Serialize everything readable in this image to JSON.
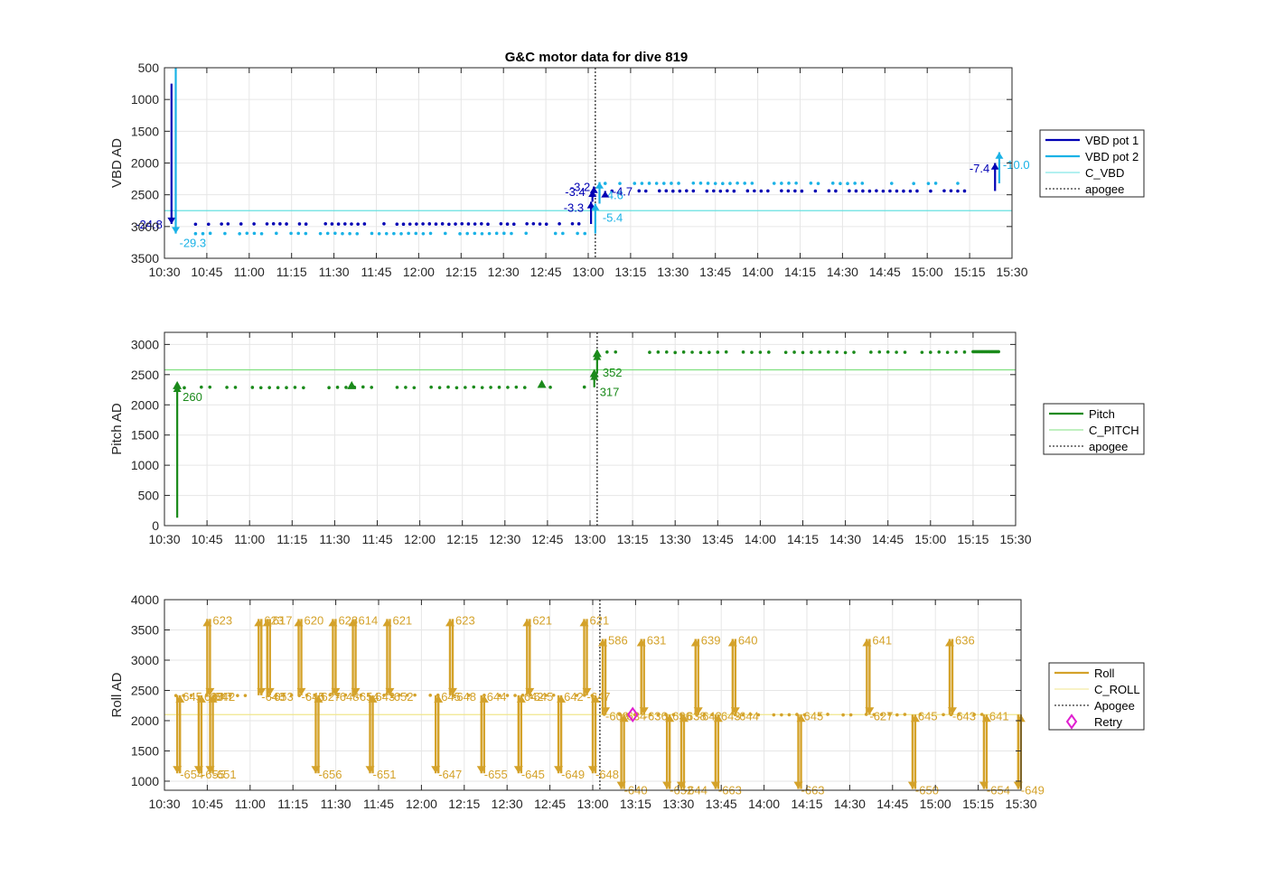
{
  "figure_title": "G&C motor data for dive 819",
  "colors": {
    "vbd1": "#0000b4",
    "vbd2": "#1ab2e6",
    "cvbd": "#66e0e0",
    "pitch": "#1a8a1a",
    "cpitch": "#80e080",
    "roll": "#d4a22a",
    "croll": "#f0e68c",
    "apogee": "#555555",
    "retry": "#e020d0",
    "grid": "#e6e6e6",
    "axis": "#262626"
  },
  "chart_data": [
    {
      "id": "vbd",
      "type": "line",
      "title": "G&C motor data for dive 819",
      "xlabel": "",
      "ylabel": "VBD AD",
      "xlim": [
        630,
        930
      ],
      "ylim": [
        500,
        3500
      ],
      "y_reversed": true,
      "xticks": [
        630,
        645,
        660,
        675,
        690,
        705,
        720,
        735,
        750,
        765,
        780,
        795,
        810,
        825,
        840,
        855,
        870,
        885,
        900,
        915,
        930
      ],
      "xtick_labels": [
        "10:30",
        "10:45",
        "11:00",
        "11:15",
        "11:30",
        "11:45",
        "12:00",
        "12:15",
        "12:30",
        "12:45",
        "13:00",
        "13:15",
        "13:30",
        "13:45",
        "14:00",
        "14:15",
        "14:30",
        "14:45",
        "15:00",
        "15:15",
        "15:30"
      ],
      "yticks": [
        500,
        1000,
        1500,
        2000,
        2500,
        3000,
        3500
      ],
      "ytick_labels": [
        "500",
        "1000",
        "1500",
        "2000",
        "2500",
        "3000",
        "3500"
      ],
      "legend": {
        "placement": "right",
        "entries": [
          "VBD pot 1",
          "VBD pot 2",
          "C_VBD",
          "apogee"
        ]
      },
      "apogee_x": 782.5,
      "c_line": 2750,
      "series": [
        {
          "name": "VBD pot 1",
          "color_key": "vbd1",
          "dots": {
            "x0": 641,
            "x1": 781,
            "step": 2.3,
            "y": 2960,
            "jitter": 8
          }
        },
        {
          "name": "VBD pot 1",
          "color_key": "vbd1",
          "dots": {
            "x0": 786,
            "x1": 914,
            "step": 2.4,
            "y": 2440,
            "jitter": 6
          }
        },
        {
          "name": "VBD pot 2",
          "color_key": "vbd2",
          "dots": {
            "x0": 641,
            "x1": 781,
            "step": 2.6,
            "y": 3110,
            "jitter": 8
          }
        },
        {
          "name": "VBD pot 2",
          "color_key": "vbd2",
          "dots": {
            "x0": 786,
            "x1": 914,
            "step": 2.6,
            "y": 2320,
            "jitter": 6
          }
        }
      ],
      "moves": [
        {
          "x": 632.5,
          "y0": 750,
          "y1": 2960,
          "color_key": "vbd1",
          "label": "-24.8",
          "lx": -10,
          "ly": 2960,
          "anchor": "end"
        },
        {
          "x": 634.0,
          "y0": 500,
          "y1": 3110,
          "color_key": "vbd2",
          "label": "-29.3",
          "lx": 4,
          "ly": 3250,
          "anchor": "start"
        },
        {
          "x": 781.0,
          "y0": 2960,
          "y1": 2610,
          "color_key": "vbd1",
          "label": "-3.3",
          "lx": -8,
          "ly": 2700,
          "anchor": "end"
        },
        {
          "x": 781.5,
          "y0": 2610,
          "y1": 2430,
          "color_key": "vbd1",
          "label": "-3.4",
          "lx": -8,
          "ly": 2450,
          "anchor": "end"
        },
        {
          "x": 782.0,
          "y0": 2430,
          "y1": 2370,
          "color_key": "vbd1",
          "label": "-3.2",
          "lx": -4,
          "ly": 2370,
          "anchor": "end"
        },
        {
          "x": 782.5,
          "y0": 3110,
          "y1": 2640,
          "color_key": "vbd2",
          "label": "-5.4",
          "lx": 8,
          "ly": 2850,
          "anchor": "start"
        },
        {
          "x": 784.0,
          "y0": 2640,
          "y1": 2300,
          "color_key": "vbd2",
          "label": "-4.6",
          "lx": 4,
          "ly": 2500,
          "anchor": "start"
        },
        {
          "x": 786.0,
          "y0": 2470,
          "y1": 2440,
          "color_key": "vbd1",
          "label": "-4.7",
          "lx": 8,
          "ly": 2440,
          "anchor": "start"
        },
        {
          "x": 924.0,
          "y0": 2440,
          "y1": 2000,
          "color_key": "vbd1",
          "label": "-7.4",
          "lx": -6,
          "ly": 2080,
          "anchor": "end"
        },
        {
          "x": 925.5,
          "y0": 2320,
          "y1": 1830,
          "color_key": "vbd2",
          "label": "-10.0",
          "lx": 4,
          "ly": 2020,
          "anchor": "start"
        }
      ]
    },
    {
      "id": "pitch",
      "type": "line",
      "title": "",
      "xlabel": "",
      "ylabel": "Pitch AD",
      "xlim": [
        630,
        930
      ],
      "ylim": [
        0,
        3200
      ],
      "y_reversed": false,
      "xticks": [
        630,
        645,
        660,
        675,
        690,
        705,
        720,
        735,
        750,
        765,
        780,
        795,
        810,
        825,
        840,
        855,
        870,
        885,
        900,
        915,
        930
      ],
      "xtick_labels": [
        "10:30",
        "10:45",
        "11:00",
        "11:15",
        "11:30",
        "11:45",
        "12:00",
        "12:15",
        "12:30",
        "12:45",
        "13:00",
        "13:15",
        "13:30",
        "13:45",
        "14:00",
        "14:15",
        "14:30",
        "14:45",
        "15:00",
        "15:15",
        "15:30"
      ],
      "yticks": [
        0,
        500,
        1000,
        1500,
        2000,
        2500,
        3000
      ],
      "ytick_labels": [
        "0",
        "500",
        "1000",
        "1500",
        "2000",
        "2500",
        "3000"
      ],
      "legend": {
        "placement": "right",
        "entries": [
          "Pitch",
          "C_PITCH",
          "apogee"
        ]
      },
      "apogee_x": 782.5,
      "c_line": 2580,
      "series": [
        {
          "name": "Pitch",
          "color_key": "pitch",
          "dots": {
            "x0": 637,
            "x1": 780,
            "step": 3.0,
            "y": 2290,
            "jitter": 14
          }
        },
        {
          "name": "Pitch",
          "color_key": "pitch",
          "dots": {
            "x0": 786,
            "x1": 915,
            "step": 3.0,
            "y": 2870,
            "jitter": 10
          }
        },
        {
          "name": "Pitch",
          "color_key": "pitch",
          "dots": {
            "x0": 915,
            "x1": 924,
            "step": 0.5,
            "y": 2880,
            "jitter": 0
          }
        }
      ],
      "markers": [
        {
          "x": 634.5,
          "y": 2320
        },
        {
          "x": 696,
          "y": 2320
        },
        {
          "x": 763,
          "y": 2340
        },
        {
          "x": 781.5,
          "y": 2520
        },
        {
          "x": 782.5,
          "y": 2850
        }
      ],
      "moves": [
        {
          "x": 634.5,
          "y0": 130,
          "y1": 2320,
          "color_key": "pitch",
          "label": "260",
          "lx": 6,
          "ly": 2140,
          "anchor": "start"
        },
        {
          "x": 781.5,
          "y0": 2290,
          "y1": 2520,
          "color_key": "pitch",
          "label": "317",
          "lx": 6,
          "ly": 2220,
          "anchor": "start"
        },
        {
          "x": 782.5,
          "y0": 2520,
          "y1": 2850,
          "color_key": "pitch",
          "label": "352",
          "lx": 6,
          "ly": 2540,
          "anchor": "start"
        }
      ]
    },
    {
      "id": "roll",
      "type": "line",
      "title": "",
      "xlabel": "",
      "ylabel": "Roll AD",
      "xlim": [
        630,
        930
      ],
      "ylim": [
        850,
        4000
      ],
      "y_reversed": false,
      "xticks": [
        630,
        645,
        660,
        675,
        690,
        705,
        720,
        735,
        750,
        765,
        780,
        795,
        810,
        825,
        840,
        855,
        870,
        885,
        900,
        915,
        930
      ],
      "xtick_labels": [
        "10:30",
        "10:45",
        "11:00",
        "11:15",
        "11:30",
        "11:45",
        "12:00",
        "12:15",
        "12:30",
        "12:45",
        "13:00",
        "13:15",
        "13:30",
        "13:45",
        "14:00",
        "14:15",
        "14:30",
        "14:45",
        "15:00",
        "15:15",
        "15:30"
      ],
      "yticks": [
        1000,
        1500,
        2000,
        2500,
        3000,
        3500,
        4000
      ],
      "ytick_labels": [
        "1000",
        "1500",
        "2000",
        "2500",
        "3000",
        "3500",
        "4000"
      ],
      "legend": {
        "placement": "right",
        "entries": [
          "Roll",
          "C_ROLL",
          "Apogee",
          "Retry"
        ]
      },
      "apogee_x": 782.5,
      "c_line": 2100,
      "retry": {
        "x": 794,
        "y": 2100,
        "label": "Retry"
      },
      "series": [
        {
          "name": "Roll",
          "color_key": "roll",
          "dots": {
            "x0": 634,
            "x1": 780,
            "step": 2.7,
            "y": 2420,
            "jitter": 12
          }
        },
        {
          "name": "Roll",
          "color_key": "roll",
          "dots": {
            "x0": 784,
            "x1": 917,
            "step": 2.7,
            "y": 2100,
            "jitter": 10
          }
        }
      ],
      "roll_pairs": [
        {
          "x": 634.5,
          "dir": "down",
          "top": 2420,
          "bot": 1130,
          "tl": "645",
          "bl": "-654"
        },
        {
          "x": 642,
          "dir": "down",
          "top": 2420,
          "bot": 1130,
          "tl": "635",
          "bl": "-655"
        },
        {
          "x": 645,
          "dir": "up",
          "top": 3680,
          "bot": 2420,
          "tl": "623",
          "bl": "-647"
        },
        {
          "x": 646,
          "dir": "down",
          "top": 2420,
          "bot": 1130,
          "tl": "642",
          "bl": "-651"
        },
        {
          "x": 663,
          "dir": "up",
          "top": 3680,
          "bot": 2420,
          "tl": "623",
          "bl": "-646"
        },
        {
          "x": 666,
          "dir": "up",
          "top": 3680,
          "bot": 2420,
          "tl": "617",
          "bl": "-653"
        },
        {
          "x": 677,
          "dir": "up",
          "top": 3680,
          "bot": 2420,
          "tl": "620",
          "bl": "-645"
        },
        {
          "x": 683,
          "dir": "down",
          "top": 2420,
          "bot": 1130,
          "tl": "627",
          "bl": "-656"
        },
        {
          "x": 689,
          "dir": "up",
          "top": 3680,
          "bot": 2420,
          "tl": "623",
          "bl": "-648"
        },
        {
          "x": 696,
          "dir": "up",
          "top": 3680,
          "bot": 2420,
          "tl": "614",
          "bl": "-654"
        },
        {
          "x": 702,
          "dir": "down",
          "top": 2420,
          "bot": 1130,
          "tl": "643",
          "bl": "-651"
        },
        {
          "x": 708,
          "dir": "up",
          "top": 3680,
          "bot": 2420,
          "tl": "621",
          "bl": "-652"
        },
        {
          "x": 730,
          "dir": "up",
          "top": 3680,
          "bot": 2420,
          "tl": "623",
          "bl": "-648"
        },
        {
          "x": 725,
          "dir": "down",
          "top": 2420,
          "bot": 1130,
          "tl": "645",
          "bl": "-647"
        },
        {
          "x": 741,
          "dir": "down",
          "top": 2420,
          "bot": 1130,
          "tl": "644",
          "bl": "-655"
        },
        {
          "x": 754,
          "dir": "down",
          "top": 2420,
          "bot": 1130,
          "tl": "642",
          "bl": "-645"
        },
        {
          "x": 757,
          "dir": "up",
          "top": 3680,
          "bot": 2420,
          "tl": "621",
          "bl": "-645"
        },
        {
          "x": 768,
          "dir": "down",
          "top": 2420,
          "bot": 1130,
          "tl": "642",
          "bl": "-649"
        },
        {
          "x": 777,
          "dir": "up",
          "top": 3680,
          "bot": 2420,
          "tl": "621",
          "bl": "-647"
        },
        {
          "x": 780,
          "dir": "down",
          "top": 2420,
          "bot": 1130,
          "tl": "",
          "bl": "-648"
        },
        {
          "x": 783.5,
          "dir": "up",
          "top": 3350,
          "bot": 2100,
          "tl": "586",
          "bl": "-609"
        },
        {
          "x": 790,
          "dir": "down",
          "top": 2100,
          "bot": 870,
          "tl": "634",
          "bl": "-640"
        },
        {
          "x": 797,
          "dir": "up",
          "top": 3350,
          "bot": 2100,
          "tl": "631",
          "bl": "-636"
        },
        {
          "x": 806,
          "dir": "down",
          "top": 2100,
          "bot": 870,
          "tl": "636",
          "bl": "-652"
        },
        {
          "x": 811,
          "dir": "down",
          "top": 2100,
          "bot": 870,
          "tl": "638",
          "bl": "-644"
        },
        {
          "x": 816,
          "dir": "up",
          "top": 3350,
          "bot": 2100,
          "tl": "639",
          "bl": "-642"
        },
        {
          "x": 823,
          "dir": "down",
          "top": 2100,
          "bot": 870,
          "tl": "643",
          "bl": "-663"
        },
        {
          "x": 829,
          "dir": "up",
          "top": 3350,
          "bot": 2100,
          "tl": "640",
          "bl": "-644"
        },
        {
          "x": 852,
          "dir": "down",
          "top": 2100,
          "bot": 870,
          "tl": "645",
          "bl": "-663"
        },
        {
          "x": 876,
          "dir": "up",
          "top": 3350,
          "bot": 2100,
          "tl": "641",
          "bl": "-627"
        },
        {
          "x": 892,
          "dir": "down",
          "top": 2100,
          "bot": 870,
          "tl": "645",
          "bl": "-650"
        },
        {
          "x": 905,
          "dir": "up",
          "top": 3350,
          "bot": 2100,
          "tl": "636",
          "bl": "-643"
        },
        {
          "x": 917,
          "dir": "down",
          "top": 2100,
          "bot": 870,
          "tl": "641",
          "bl": "-654"
        },
        {
          "x": 929,
          "dir": "down",
          "top": 2100,
          "bot": 870,
          "tl": "",
          "bl": "-649"
        }
      ]
    }
  ]
}
